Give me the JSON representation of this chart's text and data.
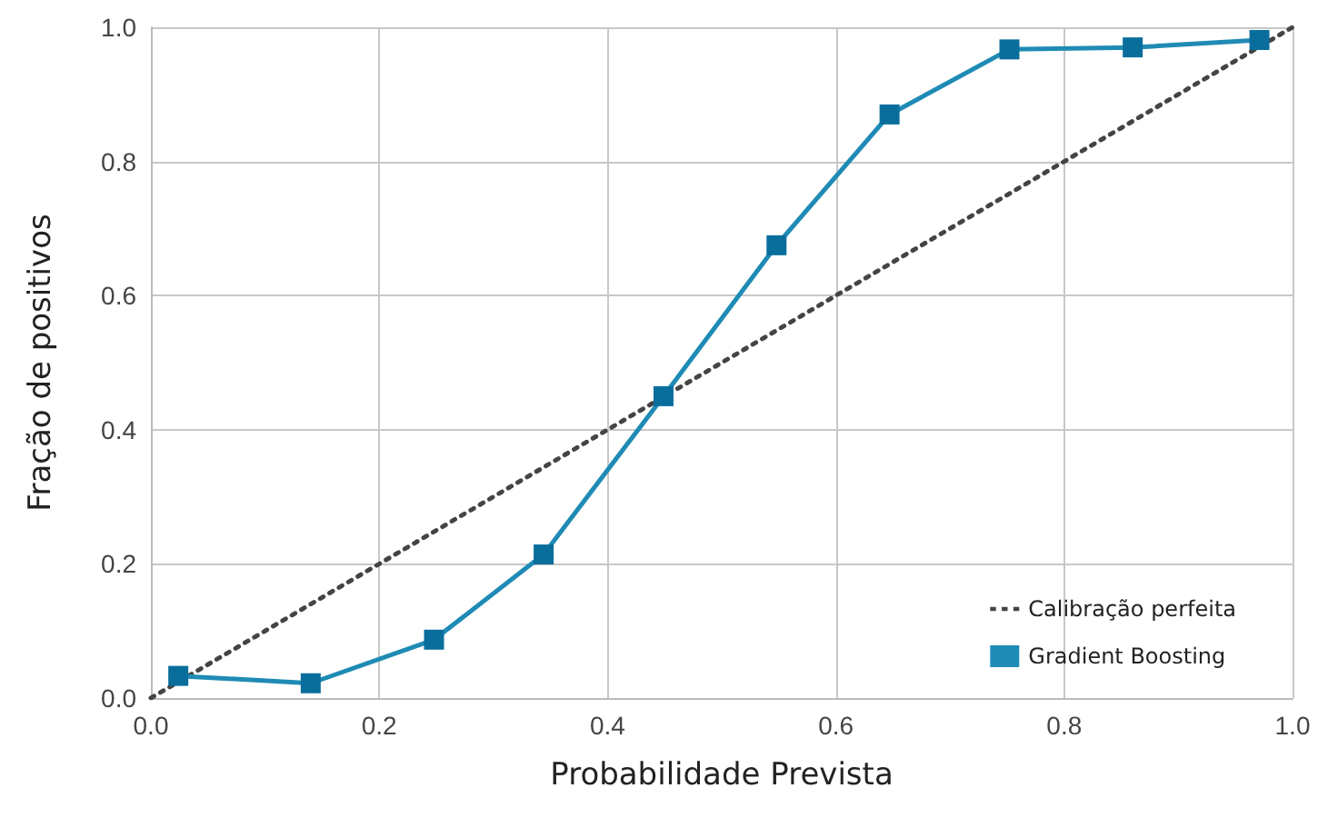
{
  "chart_data": {
    "type": "line",
    "xlabel": "Probabilidade Prevista",
    "ylabel": "Fração de positivos",
    "xlim": [
      0,
      1
    ],
    "ylim": [
      0,
      1
    ],
    "xticks": [
      {
        "value": 0,
        "label": "0.0"
      },
      {
        "value": 0.2,
        "label": "0.2"
      },
      {
        "value": 0.4,
        "label": "0.4"
      },
      {
        "value": 0.6,
        "label": "0.6"
      },
      {
        "value": 0.8,
        "label": "0.8"
      },
      {
        "value": 1,
        "label": "1.0"
      }
    ],
    "yticks": [
      {
        "value": 0,
        "label": "0.0"
      },
      {
        "value": 0.2,
        "label": "0.2"
      },
      {
        "value": 0.4,
        "label": "0.4"
      },
      {
        "value": 0.6,
        "label": "0.6"
      },
      {
        "value": 0.8,
        "label": "0.8"
      },
      {
        "value": 1,
        "label": "1.0"
      }
    ],
    "grid": true,
    "legend": "bottom right",
    "series": [
      {
        "name": "Calibração perfeita",
        "color": "#444444",
        "x": [
          0,
          1
        ],
        "values": [
          0,
          1
        ],
        "line_style": "dotted",
        "marker": "none"
      },
      {
        "name": "Gradient Boosting",
        "color": "#1f8bb5",
        "x": [
          0.024,
          0.14,
          0.248,
          0.344,
          0.449,
          0.548,
          0.647,
          0.752,
          0.86,
          0.971
        ],
        "values": [
          0.033,
          0.022,
          0.087,
          0.214,
          0.45,
          0.675,
          0.87,
          0.967,
          0.97,
          0.981
        ],
        "line_style": "solid",
        "marker": "square"
      }
    ]
  }
}
